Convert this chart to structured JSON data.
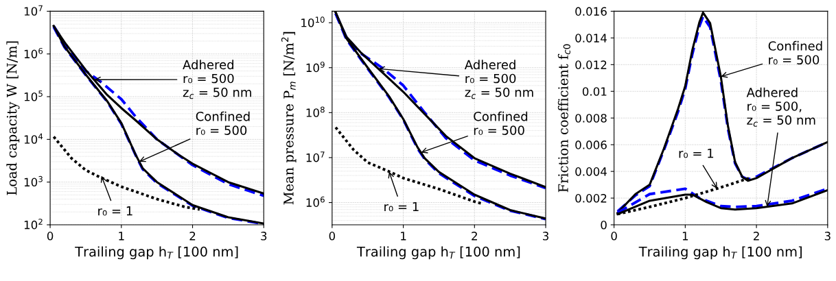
{
  "chart_data": [
    {
      "type": "line",
      "xlabel": "Trailing gap h$_{T}$ [100 nm]",
      "ylabel": "Load capacity W [N/m]",
      "log": "y",
      "grid": true,
      "xlim": [
        0,
        3
      ],
      "xticks": [
        0,
        1,
        2,
        3
      ],
      "ylim": [
        100,
        10000000
      ],
      "yticks": [
        {
          "value": 100,
          "label": "10$^{2}$"
        },
        {
          "value": 1000,
          "label": "10$^{3}$"
        },
        {
          "value": 10000,
          "label": "10$^{4}$"
        },
        {
          "value": 100000,
          "label": "10$^{5}$"
        },
        {
          "value": 1000000,
          "label": "10$^{6}$"
        },
        {
          "value": 10000000,
          "label": "10$^{7}$"
        }
      ],
      "series": [
        {
          "color": "#0000ff",
          "line_style": "dashed",
          "x": [
            0.05,
            0.2,
            0.5,
            0.7,
            1.0,
            1.2,
            1.5,
            2.0,
            2.5,
            3.0
          ],
          "values": [
            4500000,
            1800000,
            400000,
            230000,
            87000,
            34000,
            10000,
            2500,
            900,
            480
          ]
        },
        {
          "color": "#000000",
          "line_style": "solid",
          "x": [
            0.05,
            0.2,
            0.5,
            0.8,
            1.0,
            1.2,
            1.5,
            1.8,
            2.0,
            2.5,
            3.0
          ],
          "values": [
            4500000,
            1900000,
            420000,
            110000,
            54000,
            28000,
            10000,
            4400,
            2700,
            1000,
            540
          ]
        },
        {
          "color": "#0000ff",
          "line_style": "dashed",
          "x": [
            0.05,
            0.2,
            0.5,
            0.8,
            1.0,
            1.2,
            1.3,
            1.5,
            2.0,
            2.5,
            3.0
          ],
          "values": [
            4300000,
            1450000,
            320000,
            77000,
            23000,
            4300,
            2000,
            950,
            280,
            145,
            105
          ]
        },
        {
          "color": "#000000",
          "line_style": "solid",
          "x": [
            0.05,
            0.2,
            0.5,
            0.8,
            1.0,
            1.2,
            1.3,
            1.5,
            2.0,
            2.5,
            3.0
          ],
          "values": [
            4500000,
            1500000,
            330000,
            79000,
            24000,
            4400,
            2100,
            1000,
            290,
            150,
            107
          ]
        },
        {
          "color": "#000000",
          "line_style": "dotted",
          "x": [
            0.05,
            0.3,
            0.5,
            0.7,
            1.0,
            1.5,
            1.9,
            2.1
          ],
          "values": [
            11500,
            3600,
            1900,
            1300,
            780,
            400,
            260,
            230
          ]
        }
      ],
      "annotations": [
        {
          "text": "Adhered\nr₀ = 500\nz$_{c}$ = 50 nm",
          "x": 0.62,
          "y": 250000
        },
        {
          "text": "Confined\nr₀ = 500",
          "x": 1.25,
          "y": 3000
        },
        {
          "text": "r₀ = 1",
          "x": 0.72,
          "y": 1400
        }
      ]
    },
    {
      "type": "line",
      "xlabel": "Trailing gap h$_{T}$ [100 nm]",
      "ylabel": "Mean pressure P$_{m}$ [N/m$^{2}$]",
      "log": "y",
      "grid": true,
      "xlim": [
        0,
        3
      ],
      "xticks": [
        0,
        1,
        2,
        3
      ],
      "ylim": [
        320000,
        18000000000
      ],
      "yticks": [
        {
          "value": 1000000,
          "label": "10$^{6}$"
        },
        {
          "value": 10000000,
          "label": "10$^{7}$"
        },
        {
          "value": 100000000,
          "label": "10$^{8}$"
        },
        {
          "value": 1000000000,
          "label": "10$^{9}$"
        },
        {
          "value": 10000000000,
          "label": "10$^{10}$"
        }
      ],
      "series": [
        {
          "color": "#0000ff",
          "line_style": "dashed",
          "x": [
            0.05,
            0.2,
            0.4,
            0.7,
            1.0,
            1.3,
            1.6,
            2.0,
            2.5,
            3.0
          ],
          "values": [
            16000000000,
            4700000000,
            2100000000,
            1000000000,
            400000000,
            100000000,
            27000000,
            8700000,
            4000000,
            2100000
          ]
        },
        {
          "color": "#000000",
          "line_style": "solid",
          "x": [
            0.05,
            0.2,
            0.4,
            0.7,
            1.0,
            1.3,
            1.6,
            2.0,
            2.5,
            3.0
          ],
          "values": [
            17000000000,
            4900000000,
            2200000000,
            800000000,
            290000000,
            93000000,
            30000000,
            9700000,
            4400000,
            2200000
          ]
        },
        {
          "color": "#0000ff",
          "line_style": "dashed",
          "x": [
            0.05,
            0.2,
            0.5,
            0.8,
            1.0,
            1.2,
            1.3,
            1.5,
            2.0,
            2.5,
            3.0
          ],
          "values": [
            16000000000,
            4300000000,
            950000000,
            220000000,
            70000000,
            16000000,
            9300000,
            4500000,
            1400000,
            660000,
            430000
          ]
        },
        {
          "color": "#000000",
          "line_style": "solid",
          "x": [
            0.05,
            0.2,
            0.5,
            0.8,
            1.0,
            1.2,
            1.3,
            1.5,
            2.0,
            2.5,
            3.0
          ],
          "values": [
            17000000000,
            4500000000,
            1000000000,
            230000000,
            72000000,
            17000000,
            9700000,
            4800000,
            1500000,
            680000,
            440000
          ]
        },
        {
          "color": "#000000",
          "line_style": "dotted",
          "x": [
            0.05,
            0.3,
            0.5,
            0.8,
            1.0,
            1.5,
            2.0,
            2.1
          ],
          "values": [
            47000000,
            15000000,
            7800000,
            4900000,
            3500000,
            2000000,
            1050000,
            950000
          ]
        }
      ],
      "annotations": [
        {
          "text": "Adhered\nr₀ = 500\nz$_{c}$ = 50 nm",
          "x": 0.65,
          "y": 950000000
        },
        {
          "text": "Confined\nr₀ = 500",
          "x": 1.25,
          "y": 13000000
        },
        {
          "text": "r₀ = 1",
          "x": 0.8,
          "y": 4900000
        }
      ]
    },
    {
      "type": "line",
      "xlabel": "Trailing gap h$_{T}$ [100 nm]",
      "ylabel": "Friction coefficient f$_{c0}$",
      "grid": true,
      "xlim": [
        0,
        3
      ],
      "xticks": [
        0,
        1,
        2,
        3
      ],
      "ylim": [
        0,
        0.016
      ],
      "yticks": [
        0,
        0.002,
        0.004,
        0.006,
        0.008,
        0.01,
        0.012,
        0.014,
        0.016
      ],
      "series": [
        {
          "color": "#0000ff",
          "line_style": "dashed",
          "x": [
            0.05,
            0.3,
            0.5,
            0.7,
            0.9,
            1.0,
            1.1,
            1.2,
            1.25,
            1.35,
            1.5,
            1.6,
            1.7,
            1.8,
            1.88,
            2.0,
            2.5,
            3.0
          ],
          "values": [
            0.001,
            0.0022,
            0.0029,
            0.0056,
            0.0085,
            0.0102,
            0.0128,
            0.0149,
            0.0156,
            0.0148,
            0.0108,
            0.0072,
            0.0046,
            0.0036,
            0.0034,
            0.0036,
            0.005,
            0.0062
          ]
        },
        {
          "color": "#000000",
          "line_style": "solid",
          "x": [
            0.05,
            0.3,
            0.5,
            0.7,
            0.9,
            1.0,
            1.1,
            1.2,
            1.25,
            1.35,
            1.5,
            1.6,
            1.7,
            1.8,
            1.88,
            2.0,
            2.5,
            3.0
          ],
          "values": [
            0.0009,
            0.0023,
            0.003,
            0.0057,
            0.0087,
            0.0104,
            0.0131,
            0.0152,
            0.0159,
            0.0151,
            0.0111,
            0.0074,
            0.0047,
            0.0036,
            0.0033,
            0.0035,
            0.005,
            0.0062
          ]
        },
        {
          "color": "#0000ff",
          "line_style": "dashed",
          "x": [
            0.05,
            0.5,
            1.0,
            1.2,
            1.5,
            1.7,
            2.0,
            2.5,
            3.0
          ],
          "values": [
            0.0009,
            0.0023,
            0.0027,
            0.002,
            0.0014,
            0.00134,
            0.0014,
            0.0018,
            0.0027
          ]
        },
        {
          "color": "#000000",
          "line_style": "solid",
          "x": [
            0.05,
            0.5,
            1.0,
            1.1,
            1.3,
            1.5,
            1.7,
            2.0,
            2.5,
            3.0
          ],
          "values": [
            0.0008,
            0.0018,
            0.00226,
            0.00226,
            0.0017,
            0.00125,
            0.00114,
            0.00125,
            0.0016,
            0.0026
          ]
        },
        {
          "color": "#000000",
          "line_style": "dotted",
          "x": [
            0.05,
            0.5,
            1.0,
            1.5,
            1.9
          ],
          "values": [
            0.0008,
            0.00134,
            0.002,
            0.0028,
            0.0035
          ]
        }
      ],
      "annotations": [
        {
          "text": "Confined\nr₀ = 500",
          "x": 1.5,
          "y": 0.0111
        },
        {
          "text": "Adhered\nr₀ = 500,\nz$_{c}$ = 50 nm",
          "x": 2.15,
          "y": 0.00135
        },
        {
          "text": "r₀ = 1",
          "x": 1.45,
          "y": 0.0027
        }
      ]
    }
  ]
}
